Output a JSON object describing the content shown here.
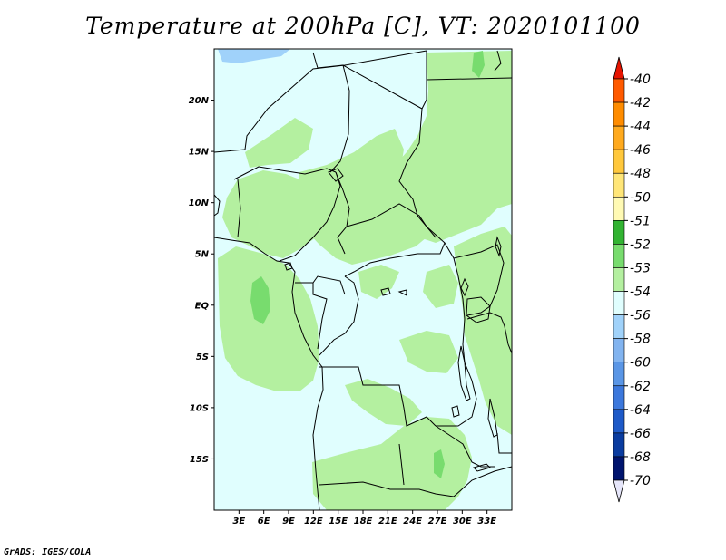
{
  "title": "Temperature at 200hPa [C], VT: 2020101100",
  "credit": "GrADS: IGES/COLA",
  "map": {
    "lon_range": [
      0,
      36
    ],
    "lat_range": [
      -20,
      25
    ],
    "lat_ticks": [
      {
        "value": 20,
        "label": "20N"
      },
      {
        "value": 15,
        "label": "15N"
      },
      {
        "value": 10,
        "label": "10N"
      },
      {
        "value": 5,
        "label": "5N"
      },
      {
        "value": 0,
        "label": "EQ"
      },
      {
        "value": -5,
        "label": "5S"
      },
      {
        "value": -10,
        "label": "10S"
      },
      {
        "value": -15,
        "label": "15S"
      }
    ],
    "lon_ticks": [
      {
        "value": 3,
        "label": "3E"
      },
      {
        "value": 6,
        "label": "6E"
      },
      {
        "value": 9,
        "label": "9E"
      },
      {
        "value": 12,
        "label": "12E"
      },
      {
        "value": 15,
        "label": "15E"
      },
      {
        "value": 18,
        "label": "18E"
      },
      {
        "value": 21,
        "label": "21E"
      },
      {
        "value": 24,
        "label": "24E"
      },
      {
        "value": 27,
        "label": "27E"
      },
      {
        "value": 30,
        "label": "30E"
      },
      {
        "value": 33,
        "label": "33E"
      }
    ],
    "background_color": "#e0fefe",
    "field_colors": {
      "level_-53": "#b4f0a0",
      "level_-52": "#78dc6e",
      "level_-56": "#a0d2fa"
    }
  },
  "colorbar": {
    "labels": [
      "-40",
      "-42",
      "-44",
      "-46",
      "-48",
      "-50",
      "-51",
      "-52",
      "-53",
      "-54",
      "-56",
      "-58",
      "-60",
      "-62",
      "-64",
      "-66",
      "-68",
      "-70"
    ],
    "colors": [
      "#ff1e00",
      "#ff5a00",
      "#ff8c00",
      "#ffaa1e",
      "#ffc83c",
      "#ffe678",
      "#fffab4",
      "#32b432",
      "#78dc6e",
      "#b4f0a0",
      "#e0fefe",
      "#a0d2fa",
      "#82b4f0",
      "#5a96e6",
      "#3c78dc",
      "#1e5ac8",
      "#0a3ca0",
      "#00146e"
    ],
    "top_arrow_color": "#e61400",
    "bottom_arrow_color": "#e6e6fa"
  }
}
